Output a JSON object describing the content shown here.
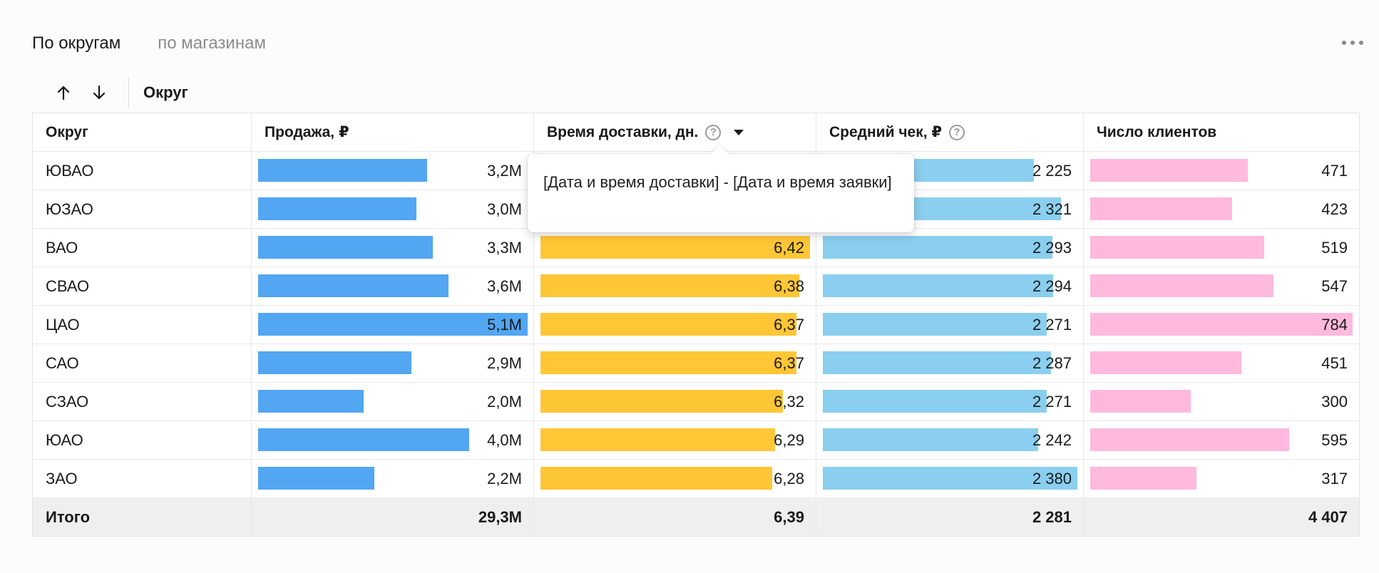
{
  "tabs": [
    {
      "label": "По округам",
      "active": true
    },
    {
      "label": "по магазинам",
      "active": false
    }
  ],
  "toolbar": {
    "sort_up_icon": "arrow-up-icon",
    "sort_down_icon": "arrow-down-icon",
    "field_label": "Округ"
  },
  "columns": [
    {
      "label": "Округ"
    },
    {
      "label": "Продажа, ₽"
    },
    {
      "label": "Время доставки, дн.",
      "hint": "?",
      "sorted": "desc"
    },
    {
      "label": "Средний чек, ₽",
      "hint": "?"
    },
    {
      "label": "Число клиентов"
    }
  ],
  "colors": {
    "sales": "#52a6f2",
    "delivery": "#ffc636",
    "avg_check": "#8acfef",
    "clients": "#ffb9dd",
    "total_bg": "#efefef"
  },
  "rows": [
    {
      "district": "ЮВАО",
      "sales": "3,2М",
      "sales_v": 3.2,
      "delivery": "",
      "delivery_v": null,
      "avg": "2 225",
      "avg_v": 2225,
      "clients": "471",
      "clients_v": 471
    },
    {
      "district": "ЮЗАО",
      "sales": "3,0М",
      "sales_v": 3.0,
      "delivery": "",
      "delivery_v": null,
      "avg": "2 321",
      "avg_v": 2321,
      "clients": "423",
      "clients_v": 423
    },
    {
      "district": "ВАО",
      "sales": "3,3М",
      "sales_v": 3.3,
      "delivery": "6,42",
      "delivery_v": 6.42,
      "avg": "2 293",
      "avg_v": 2293,
      "clients": "519",
      "clients_v": 519
    },
    {
      "district": "СВАО",
      "sales": "3,6М",
      "sales_v": 3.6,
      "delivery": "6,38",
      "delivery_v": 6.38,
      "avg": "2 294",
      "avg_v": 2294,
      "clients": "547",
      "clients_v": 547
    },
    {
      "district": "ЦАО",
      "sales": "5,1М",
      "sales_v": 5.1,
      "delivery": "6,37",
      "delivery_v": 6.37,
      "avg": "2 271",
      "avg_v": 2271,
      "clients": "784",
      "clients_v": 784
    },
    {
      "district": "САО",
      "sales": "2,9М",
      "sales_v": 2.9,
      "delivery": "6,37",
      "delivery_v": 6.37,
      "avg": "2 287",
      "avg_v": 2287,
      "clients": "451",
      "clients_v": 451
    },
    {
      "district": "СЗАО",
      "sales": "2,0М",
      "sales_v": 2.0,
      "delivery": "6,32",
      "delivery_v": 6.32,
      "avg": "2 271",
      "avg_v": 2271,
      "clients": "300",
      "clients_v": 300
    },
    {
      "district": "ЮАО",
      "sales": "4,0М",
      "sales_v": 4.0,
      "delivery": "6,29",
      "delivery_v": 6.29,
      "avg": "2 242",
      "avg_v": 2242,
      "clients": "595",
      "clients_v": 595
    },
    {
      "district": "ЗАО",
      "sales": "2,2М",
      "sales_v": 2.2,
      "delivery": "6,28",
      "delivery_v": 6.28,
      "avg": "2 380",
      "avg_v": 2380,
      "clients": "317",
      "clients_v": 317
    }
  ],
  "total": {
    "label": "Итого",
    "sales": "29,3М",
    "delivery": "6,39",
    "avg": "2 281",
    "clients": "4 407"
  },
  "tooltip": {
    "text": "[Дата и время доставки] - [Дата и время заявки]"
  }
}
